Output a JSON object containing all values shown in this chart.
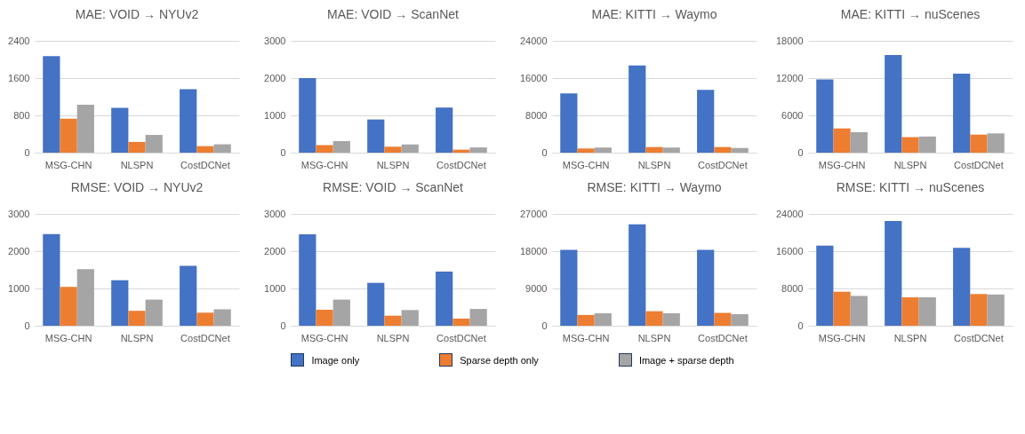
{
  "chart_data": [
    {
      "type": "bar",
      "title": "MAE: VOID → NYUv2",
      "categories": [
        "MSG-CHN",
        "NLSPN",
        "CostDCNet"
      ],
      "series": [
        {
          "name": "Image only",
          "color": "#4472c4",
          "values": [
            2070,
            960,
            1360
          ]
        },
        {
          "name": "Sparse depth only",
          "color": "#ed7d31",
          "values": [
            730,
            230,
            140
          ]
        },
        {
          "name": "Image + sparse depth",
          "color": "#a5a5a5",
          "values": [
            1030,
            380,
            180
          ]
        }
      ],
      "ylim": [
        0,
        2400
      ],
      "yticks": [
        0,
        800,
        1600,
        2400
      ],
      "grid": "y",
      "legend": "bottom"
    },
    {
      "type": "bar",
      "title": "MAE: VOID → ScanNet",
      "categories": [
        "MSG-CHN",
        "NLSPN",
        "CostDCNet"
      ],
      "series": [
        {
          "name": "Image only",
          "color": "#4472c4",
          "values": [
            2000,
            890,
            1210
          ]
        },
        {
          "name": "Sparse depth only",
          "color": "#ed7d31",
          "values": [
            200,
            160,
            80
          ]
        },
        {
          "name": "Image + sparse depth",
          "color": "#a5a5a5",
          "values": [
            310,
            220,
            140
          ]
        }
      ],
      "ylim": [
        0,
        3000
      ],
      "yticks": [
        0,
        1000,
        2000,
        3000
      ],
      "grid": "y",
      "legend": "bottom"
    },
    {
      "type": "bar",
      "title": "MAE: KITTI → Waymo",
      "categories": [
        "MSG-CHN",
        "NLSPN",
        "CostDCNet"
      ],
      "series": [
        {
          "name": "Image only",
          "color": "#4472c4",
          "values": [
            12700,
            18700,
            13500
          ]
        },
        {
          "name": "Sparse depth only",
          "color": "#ed7d31",
          "values": [
            900,
            1200,
            1200
          ]
        },
        {
          "name": "Image + sparse depth",
          "color": "#a5a5a5",
          "values": [
            1100,
            1100,
            1000
          ]
        }
      ],
      "ylim": [
        0,
        24000
      ],
      "yticks": [
        0,
        8000,
        16000,
        24000
      ],
      "grid": "y",
      "legend": "bottom"
    },
    {
      "type": "bar",
      "title": "MAE: KITTI → nuScenes",
      "categories": [
        "MSG-CHN",
        "NLSPN",
        "CostDCNet"
      ],
      "series": [
        {
          "name": "Image only",
          "color": "#4472c4",
          "values": [
            11800,
            15700,
            12700
          ]
        },
        {
          "name": "Sparse depth only",
          "color": "#ed7d31",
          "values": [
            3900,
            2500,
            2900
          ]
        },
        {
          "name": "Image + sparse depth",
          "color": "#a5a5a5",
          "values": [
            3300,
            2600,
            3100
          ]
        }
      ],
      "ylim": [
        0,
        18000
      ],
      "yticks": [
        0,
        6000,
        12000,
        18000
      ],
      "grid": "y",
      "legend": "bottom"
    },
    {
      "type": "bar",
      "title": "RMSE: VOID → NYUv2",
      "categories": [
        "MSG-CHN",
        "NLSPN",
        "CostDCNet"
      ],
      "series": [
        {
          "name": "Image only",
          "color": "#4472c4",
          "values": [
            2460,
            1220,
            1610
          ]
        },
        {
          "name": "Sparse depth only",
          "color": "#ed7d31",
          "values": [
            1040,
            400,
            350
          ]
        },
        {
          "name": "Image + sparse depth",
          "color": "#a5a5a5",
          "values": [
            1520,
            700,
            440
          ]
        }
      ],
      "ylim": [
        0,
        3000
      ],
      "yticks": [
        0,
        1000,
        2000,
        3000
      ],
      "grid": "y",
      "legend": "bottom"
    },
    {
      "type": "bar",
      "title": "RMSE: VOID → ScanNet",
      "categories": [
        "MSG-CHN",
        "NLSPN",
        "CostDCNet"
      ],
      "series": [
        {
          "name": "Image only",
          "color": "#4472c4",
          "values": [
            2450,
            1150,
            1450
          ]
        },
        {
          "name": "Sparse depth only",
          "color": "#ed7d31",
          "values": [
            430,
            270,
            190
          ]
        },
        {
          "name": "Image + sparse depth",
          "color": "#a5a5a5",
          "values": [
            700,
            420,
            450
          ]
        }
      ],
      "ylim": [
        0,
        3000
      ],
      "yticks": [
        0,
        1000,
        2000,
        3000
      ],
      "grid": "y",
      "legend": "bottom"
    },
    {
      "type": "bar",
      "title": "RMSE: KITTI → Waymo",
      "categories": [
        "MSG-CHN",
        "NLSPN",
        "CostDCNet"
      ],
      "series": [
        {
          "name": "Image only",
          "color": "#4472c4",
          "values": [
            18300,
            24500,
            18300
          ]
        },
        {
          "name": "Sparse depth only",
          "color": "#ed7d31",
          "values": [
            2600,
            3500,
            3100
          ]
        },
        {
          "name": "Image + sparse depth",
          "color": "#a5a5a5",
          "values": [
            3000,
            3000,
            2800
          ]
        }
      ],
      "ylim": [
        0,
        27000
      ],
      "yticks": [
        0,
        9000,
        18000,
        27000
      ],
      "grid": "y",
      "legend": "bottom"
    },
    {
      "type": "bar",
      "title": "RMSE: KITTI → nuScenes",
      "categories": [
        "MSG-CHN",
        "NLSPN",
        "CostDCNet"
      ],
      "series": [
        {
          "name": "Image only",
          "color": "#4472c4",
          "values": [
            17200,
            22500,
            16700
          ]
        },
        {
          "name": "Sparse depth only",
          "color": "#ed7d31",
          "values": [
            7300,
            6100,
            6800
          ]
        },
        {
          "name": "Image + sparse depth",
          "color": "#a5a5a5",
          "values": [
            6400,
            6100,
            6700
          ]
        }
      ],
      "ylim": [
        0,
        24000
      ],
      "yticks": [
        0,
        8000,
        16000,
        24000
      ],
      "grid": "y",
      "legend": "bottom"
    }
  ]
}
